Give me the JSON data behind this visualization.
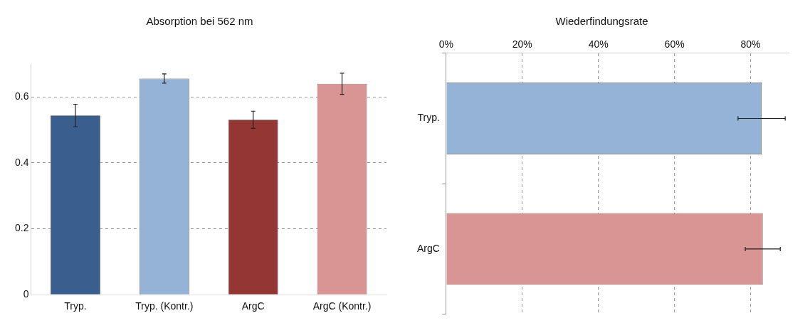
{
  "chart_data": [
    {
      "type": "bar",
      "title": "Absorption bei 562 nm",
      "categories": [
        "Tryp.",
        "Tryp. (Kontr.)",
        "ArgC",
        "ArgC (Kontr.)"
      ],
      "values": [
        0.544,
        0.656,
        0.531,
        0.64
      ],
      "errors": [
        0.034,
        0.014,
        0.026,
        0.032
      ],
      "colors": [
        "#3a5f8f",
        "#95b3d7",
        "#943634",
        "#d99594"
      ],
      "ylim": [
        0,
        0.7
      ],
      "yticks": [
        0,
        0.2,
        0.4,
        0.6
      ],
      "grid": "y",
      "legend": false
    },
    {
      "type": "bar",
      "orientation": "horizontal",
      "title": "Wiederfindungsrate",
      "categories": [
        "Tryp.",
        "ArgC"
      ],
      "values": [
        82.9,
        83.2
      ],
      "errors": [
        6.2,
        4.6
      ],
      "colors": [
        "#95b3d7",
        "#d99594"
      ],
      "xlim": [
        0,
        90
      ],
      "xticks": [
        {
          "value": 0,
          "label": "0%"
        },
        {
          "value": 20,
          "label": "20%"
        },
        {
          "value": 40,
          "label": "40%"
        },
        {
          "value": 60,
          "label": "60%"
        },
        {
          "value": 80,
          "label": "80%"
        }
      ],
      "grid": "x",
      "legend": false
    }
  ]
}
